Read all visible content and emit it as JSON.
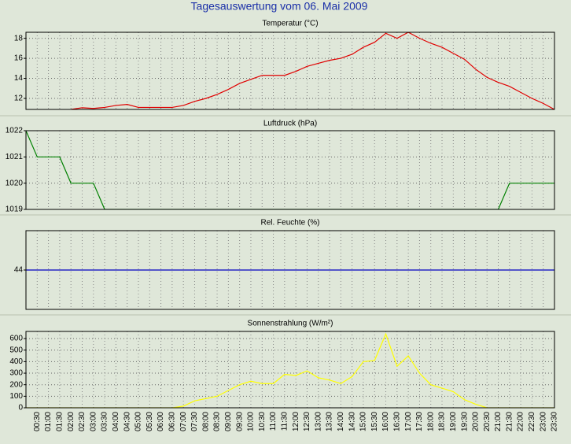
{
  "title": "Tagesauswertung vom 06. Mai 2009",
  "chart_data": [
    {
      "type": "line",
      "title": "Temperatur (°C)",
      "color": "#e00000",
      "grid": true,
      "ylim": [
        10.9,
        18.6
      ],
      "yticks": [
        12,
        14,
        16,
        18
      ],
      "values": [
        null,
        null,
        null,
        null,
        10.9,
        11.07,
        11.0,
        11.1,
        11.3,
        11.4,
        11.1,
        11.1,
        11.1,
        11.1,
        11.3,
        11.7,
        12.0,
        12.4,
        12.9,
        13.5,
        13.9,
        14.3,
        14.3,
        14.3,
        14.7,
        15.2,
        15.5,
        15.8,
        16.0,
        16.4,
        17.1,
        17.6,
        18.5,
        18.0,
        18.6,
        18.0,
        17.5,
        17.1,
        16.5,
        15.9,
        14.9,
        14.1,
        13.6,
        13.2,
        12.6,
        12.0,
        11.5,
        10.9
      ]
    },
    {
      "type": "line",
      "title": "Luftdruck (hPa)",
      "color": "#008000",
      "grid": true,
      "ylim": [
        1019,
        1022
      ],
      "yticks": [
        1019,
        1020,
        1021,
        1022
      ],
      "values": [
        1022,
        1021,
        1021,
        1021,
        1020,
        1020,
        1020,
        1019,
        1019,
        1019,
        1019,
        1019,
        1019,
        1019,
        1019,
        1019,
        1019,
        1019,
        1019,
        1019,
        1019,
        1019,
        1019,
        1019,
        1019,
        1019,
        1019,
        1019,
        1019,
        1019,
        1019,
        1019,
        1019,
        1019,
        1019,
        1019,
        1019,
        1019,
        1019,
        1019,
        1019,
        1019,
        1019,
        1020,
        1020,
        1020,
        1020,
        1020
      ]
    },
    {
      "type": "line",
      "title": "Rel. Feuchte (%)",
      "color": "#0000c0",
      "grid": true,
      "ylim": [
        43,
        45
      ],
      "yticks": [
        44
      ],
      "values": [
        44,
        44,
        44,
        44,
        44,
        44,
        44,
        44,
        44,
        44,
        44,
        44,
        44,
        44,
        44,
        44,
        44,
        44,
        44,
        44,
        44,
        44,
        44,
        44,
        44,
        44,
        44,
        44,
        44,
        44,
        44,
        44,
        44,
        44,
        44,
        44,
        44,
        44,
        44,
        44,
        44,
        44,
        44,
        44,
        44,
        44,
        44,
        44
      ]
    },
    {
      "type": "line",
      "title": "Sonnenstrahlung (W/m²)",
      "color": "#ffff00",
      "grid": true,
      "ylim": [
        0,
        662
      ],
      "yticks": [
        0,
        100,
        200,
        300,
        400,
        500,
        600
      ],
      "categories": [
        null,
        "00:30",
        "01:00",
        "01:30",
        "02:00",
        "02:30",
        "03:00",
        "03:30",
        "04:00",
        "04:30",
        "05:00",
        "05:30",
        "06:00",
        "06:30",
        "07:00",
        "07:30",
        "08:00",
        "08:30",
        "09:00",
        "09:30",
        "10:00",
        "10:30",
        "11:00",
        "11:30",
        "12:00",
        "12:30",
        "13:00",
        "13:30",
        "14:00",
        "14:30",
        "15:00",
        "15:30",
        "16:00",
        "16:30",
        "17:00",
        "17:30",
        "18:00",
        "18:30",
        "19:00",
        "19:30",
        "20:00",
        "20:30",
        "21:00",
        "21:30",
        "22:00",
        "22:30",
        "23:00",
        "23:30"
      ],
      "values": [
        0,
        0,
        0,
        0,
        0,
        0,
        0,
        0,
        0,
        0,
        0,
        0,
        0,
        0,
        14,
        60,
        80,
        100,
        150,
        200,
        230,
        210,
        210,
        290,
        280,
        320,
        260,
        240,
        210,
        270,
        400,
        410,
        640,
        360,
        450,
        300,
        200,
        170,
        140,
        70,
        30,
        0,
        0,
        0,
        0,
        0,
        0,
        0
      ]
    }
  ]
}
